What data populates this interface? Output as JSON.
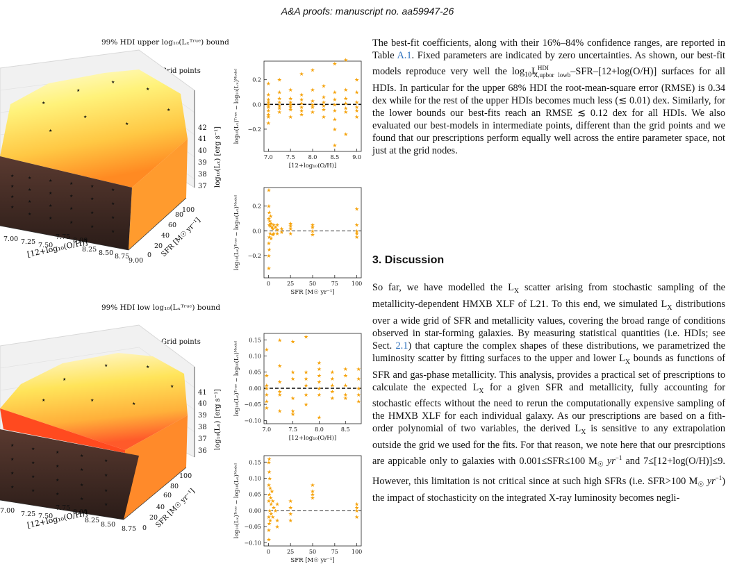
{
  "header": "A&A proofs: manuscript no. aa59947-26",
  "figures": {
    "top": {
      "title": "99% HDI upper log₁₀(Lₓᵀʳᵘᵉ) bound",
      "legend": "Grid points",
      "z_ticks": [
        "42",
        "41",
        "40",
        "39",
        "38",
        "37"
      ],
      "z_label": "log₁₀(Lₓ) [erg s⁻¹]",
      "x_ticks": [
        "7.00",
        "7.25",
        "7.50",
        "7.75",
        "8.00",
        "8.25",
        "8.50",
        "8.75",
        "9.00"
      ],
      "x_label": "[12+log₁₀(O/H)]",
      "y_ticks": [
        "0",
        "20",
        "40",
        "60",
        "80",
        "100"
      ],
      "y_label": "SFR [M☉ yr⁻¹]"
    },
    "bottom": {
      "title": "99% HDI low log₁₀(Lₓᵀʳᵘᵉ) bound",
      "legend": "Grid points",
      "z_ticks": [
        "41",
        "40",
        "39",
        "38",
        "37",
        "36"
      ],
      "z_label": "log₁₀(Lₓ) [erg s⁻¹]",
      "x_ticks": [
        "7.00",
        "7.25",
        "7.50",
        "7.75",
        "8.00",
        "8.25",
        "8.50",
        "8.75"
      ],
      "x_label": "[12+log₁₀(O/H)]",
      "y_ticks": [
        "0",
        "20",
        "40",
        "60",
        "80",
        "100"
      ],
      "y_label": "SFR [M☉ yr⁻¹]"
    }
  },
  "chart_data": [
    {
      "type": "scatter",
      "panel": "top-metallicity-residuals",
      "xlabel": "[12+log₁₀(O/H)]",
      "ylabel": "log₁₀(Lₓ)ᵀʳᵘᵉ − log₁₀(Lₓ)ᴹᵒᵈᵉˡ",
      "xlim": [
        6.9,
        9.1
      ],
      "ylim": [
        -0.38,
        0.35
      ],
      "x_ticks": [
        "7.0",
        "7.5",
        "8.0",
        "8.5",
        "9.0"
      ],
      "y_ticks": [
        "0.2",
        "0.0",
        "−0.2"
      ],
      "color": "#f5a20a",
      "points": [
        [
          7.0,
          0.17
        ],
        [
          7.0,
          0.08
        ],
        [
          7.0,
          0.04
        ],
        [
          7.0,
          0.02
        ],
        [
          7.0,
          0.0
        ],
        [
          7.0,
          -0.02
        ],
        [
          7.0,
          -0.05
        ],
        [
          7.0,
          -0.08
        ],
        [
          7.0,
          -0.1
        ],
        [
          7.0,
          -0.15
        ],
        [
          7.25,
          0.2
        ],
        [
          7.25,
          0.1
        ],
        [
          7.25,
          0.05
        ],
        [
          7.25,
          0.02
        ],
        [
          7.25,
          -0.01
        ],
        [
          7.25,
          -0.03
        ],
        [
          7.25,
          -0.06
        ],
        [
          7.5,
          0.12
        ],
        [
          7.5,
          0.05
        ],
        [
          7.5,
          0.02
        ],
        [
          7.5,
          0.0
        ],
        [
          7.5,
          -0.02
        ],
        [
          7.5,
          -0.04
        ],
        [
          7.5,
          -0.1
        ],
        [
          7.75,
          0.25
        ],
        [
          7.75,
          0.08
        ],
        [
          7.75,
          0.04
        ],
        [
          7.75,
          0.01
        ],
        [
          7.75,
          -0.02
        ],
        [
          7.75,
          -0.05
        ],
        [
          7.75,
          -0.08
        ],
        [
          8.0,
          0.28
        ],
        [
          8.0,
          0.12
        ],
        [
          8.0,
          0.03
        ],
        [
          8.0,
          0.0
        ],
        [
          8.0,
          -0.02
        ],
        [
          8.0,
          -0.06
        ],
        [
          8.25,
          0.15
        ],
        [
          8.25,
          0.06
        ],
        [
          8.25,
          0.02
        ],
        [
          8.25,
          -0.01
        ],
        [
          8.25,
          -0.04
        ],
        [
          8.25,
          -0.1
        ],
        [
          8.5,
          0.33
        ],
        [
          8.5,
          0.1
        ],
        [
          8.5,
          0.04
        ],
        [
          8.5,
          0.0
        ],
        [
          8.5,
          -0.05
        ],
        [
          8.5,
          -0.12
        ],
        [
          8.5,
          -0.33
        ],
        [
          8.5,
          -0.2
        ],
        [
          8.75,
          0.36
        ],
        [
          8.75,
          0.12
        ],
        [
          8.75,
          0.05
        ],
        [
          8.75,
          0.01
        ],
        [
          8.75,
          -0.03
        ],
        [
          8.75,
          -0.06
        ],
        [
          8.75,
          -0.24
        ],
        [
          9.0,
          0.2
        ],
        [
          9.0,
          0.1
        ],
        [
          9.0,
          0.02
        ],
        [
          9.0,
          -0.02
        ],
        [
          9.0,
          -0.05
        ],
        [
          9.0,
          -0.1
        ]
      ]
    },
    {
      "type": "scatter",
      "panel": "top-sfr-residuals",
      "xlabel": "SFR [M☉ yr⁻¹]",
      "ylabel": "log₁₀(Lₓ)ᵀʳᵘᵉ − log₁₀(Lₓ)ᴹᵒᵈᵉˡ",
      "xlim": [
        -5,
        105
      ],
      "ylim": [
        -0.38,
        0.35
      ],
      "x_ticks": [
        "0",
        "25",
        "50",
        "75",
        "100"
      ],
      "y_ticks": [
        "0.2",
        "0.0",
        "−0.2"
      ],
      "color": "#f5a20a",
      "points": [
        [
          0.5,
          0.33
        ],
        [
          0.5,
          0.2
        ],
        [
          0.5,
          0.1
        ],
        [
          0.5,
          -0.1
        ],
        [
          0.5,
          -0.2
        ],
        [
          0.5,
          -0.3
        ],
        [
          1,
          0.15
        ],
        [
          1,
          0.05
        ],
        [
          1,
          -0.05
        ],
        [
          1,
          -0.15
        ],
        [
          1.5,
          0.08
        ],
        [
          2,
          0.04
        ],
        [
          2,
          -0.02
        ],
        [
          2.5,
          0.12
        ],
        [
          3,
          0.06
        ],
        [
          3,
          -0.06
        ],
        [
          4,
          0.03
        ],
        [
          5,
          0.02
        ],
        [
          5,
          -0.03
        ],
        [
          6,
          0.05
        ],
        [
          6,
          -0.02
        ],
        [
          8,
          0.03
        ],
        [
          10,
          0.05
        ],
        [
          10,
          -0.02
        ],
        [
          10,
          0.01
        ],
        [
          15,
          0.02
        ],
        [
          15,
          -0.01
        ],
        [
          25,
          0.06
        ],
        [
          25,
          0.02
        ],
        [
          25,
          -0.02
        ],
        [
          25,
          0.04
        ],
        [
          50,
          0.05
        ],
        [
          50,
          0.0
        ],
        [
          50,
          -0.03
        ],
        [
          50,
          0.03
        ],
        [
          100,
          0.18
        ],
        [
          100,
          0.05
        ],
        [
          100,
          -0.02
        ],
        [
          100,
          -0.05
        ],
        [
          100,
          0.0
        ]
      ]
    },
    {
      "type": "scatter",
      "panel": "bottom-metallicity-residuals",
      "xlabel": "[12+log₁₀(O/H)]",
      "ylabel": "log₁₀(Lₓ)ᵀʳᵘᵉ − log₁₀(Lₓ)ᴹᵒᵈᵉˡ",
      "xlim": [
        6.95,
        8.8
      ],
      "ylim": [
        -0.11,
        0.17
      ],
      "x_ticks": [
        "7.0",
        "7.5",
        "8.0",
        "8.5"
      ],
      "y_ticks": [
        "0.15",
        "0.10",
        "0.05",
        "0.00",
        "−0.05",
        "−0.10"
      ],
      "color": "#f5a20a",
      "points": [
        [
          7.0,
          0.12
        ],
        [
          7.0,
          0.04
        ],
        [
          7.0,
          0.0
        ],
        [
          7.0,
          -0.02
        ],
        [
          7.0,
          -0.04
        ],
        [
          7.0,
          -0.06
        ],
        [
          7.0,
          0.01
        ],
        [
          7.25,
          0.15
        ],
        [
          7.25,
          0.07
        ],
        [
          7.25,
          0.02
        ],
        [
          7.25,
          -0.02
        ],
        [
          7.25,
          -0.07
        ],
        [
          7.25,
          -0.01
        ],
        [
          7.5,
          0.145
        ],
        [
          7.5,
          0.05
        ],
        [
          7.5,
          0.03
        ],
        [
          7.5,
          -0.03
        ],
        [
          7.5,
          -0.07
        ],
        [
          7.5,
          -0.08
        ],
        [
          7.75,
          0.16
        ],
        [
          7.75,
          0.05
        ],
        [
          7.75,
          0.01
        ],
        [
          7.75,
          -0.02
        ],
        [
          7.75,
          -0.05
        ],
        [
          7.75,
          0.03
        ],
        [
          8.0,
          0.08
        ],
        [
          8.0,
          0.06
        ],
        [
          8.0,
          0.04
        ],
        [
          8.0,
          0.02
        ],
        [
          8.0,
          0.0
        ],
        [
          8.0,
          -0.02
        ],
        [
          8.0,
          -0.09
        ],
        [
          8.25,
          0.05
        ],
        [
          8.25,
          0.03
        ],
        [
          8.25,
          0.01
        ],
        [
          8.25,
          -0.01
        ],
        [
          8.25,
          -0.03
        ],
        [
          8.5,
          0.06
        ],
        [
          8.5,
          0.04
        ],
        [
          8.5,
          0.01
        ],
        [
          8.5,
          -0.02
        ],
        [
          8.5,
          -0.03
        ],
        [
          8.75,
          0.06
        ],
        [
          8.75,
          0.03
        ],
        [
          8.75,
          0.0
        ],
        [
          8.75,
          -0.02
        ],
        [
          8.75,
          -0.04
        ]
      ]
    },
    {
      "type": "scatter",
      "panel": "bottom-sfr-residuals",
      "xlabel": "SFR [M☉ yr⁻¹]",
      "ylabel": "log₁₀(Lₓ)ᵀʳᵘᵉ − log₁₀(Lₓ)ᴹᵒᵈᵉˡ",
      "xlim": [
        -5,
        105
      ],
      "ylim": [
        -0.11,
        0.17
      ],
      "x_ticks": [
        "0",
        "25",
        "50",
        "75",
        "100"
      ],
      "y_ticks": [
        "0.15",
        "0.10",
        "0.05",
        "0.00",
        "−0.05",
        "−0.10"
      ],
      "color": "#f5a20a",
      "points": [
        [
          0.5,
          0.15
        ],
        [
          0.5,
          0.08
        ],
        [
          0.5,
          0.03
        ],
        [
          0.5,
          -0.02
        ],
        [
          0.5,
          -0.06
        ],
        [
          0.5,
          -0.09
        ],
        [
          1,
          0.16
        ],
        [
          1,
          0.12
        ],
        [
          1,
          0.05
        ],
        [
          1,
          -0.04
        ],
        [
          1.5,
          0.1
        ],
        [
          1.5,
          0.0
        ],
        [
          2,
          0.07
        ],
        [
          2,
          -0.03
        ],
        [
          2.5,
          0.04
        ],
        [
          3,
          0.02
        ],
        [
          3,
          -0.01
        ],
        [
          4,
          0.06
        ],
        [
          5,
          0.03
        ],
        [
          5,
          -0.02
        ],
        [
          6,
          0.01
        ],
        [
          8,
          0.0
        ],
        [
          10,
          0.02
        ],
        [
          10,
          -0.03
        ],
        [
          10,
          -0.05
        ],
        [
          25,
          0.03
        ],
        [
          25,
          0.01
        ],
        [
          25,
          -0.01
        ],
        [
          25,
          -0.03
        ],
        [
          50,
          0.08
        ],
        [
          50,
          0.06
        ],
        [
          50,
          0.04
        ],
        [
          50,
          0.05
        ],
        [
          100,
          0.02
        ],
        [
          100,
          0.01
        ],
        [
          100,
          0.0
        ],
        [
          100,
          -0.02
        ]
      ]
    }
  ],
  "text": {
    "p1": "The best-fit coefficients, along with their 16%–84% confidence ranges, are reported in Table A.1. Fixed parameters are indicated by zero uncertainties. As shown, our best-fit models reproduce very well the log₁₀L^HDI_X,upbor lowb–SFR–[12+log(O/H)] surfaces for all HDIs. In particular for the upper 68% HDI the root-mean-square error (RMSE) is 0.34 dex while for the rest of the upper HDIs becomes much less (≲ 0.01) dex. Similarly, for the lower bounds our best-fits reach an RMSE ≲ 0.12 dex for all HDIs. We also evaluated our best-models in intermediate points, different than the grid points and we found that our prescriptions perform equally well across the entire parameter space, not just at the grid nodes.",
    "section": "3. Discussion",
    "p2": "So far, we have modelled the Lₓ scatter arising from stochastic sampling of the metallicity-dependent HMXB XLF of L21. To this end, we simulated Lₓ distributions over a wide grid of SFR and metallicity values, covering the broad range of conditions observed in star-forming galaxies. By measuring statistical quantities (i.e. HDIs; see Sect. 2.1) that capture the complex shapes of these distributions, we parametrized the luminosity scatter by fitting surfaces to the upper and lower Lₓ bounds as functions of SFR and gas-phase metallicity. This analysis, provides a practical set of prescriptions to calculate the expected Lₓ for a given SFR and metallicity, fully accounting for stochastic effects without the need to rerun the computationally expensive sampling of the HMXB XLF for each individual galaxy. As our prescriptions are based on a fith-order polynomial of two variables, the derived Lₓ is sensitive to any extrapolation outside the grid we used for the fits. For that reason, we note here that our presrciptions are appicable only to galaxies with 0.001≤SFR≤100 M☉ yr⁻¹ and 7≤[12+log(O/H)]≤9. However, this limitation is not critical since at such high SFRs (i.e. SFR>100 M☉ yr⁻¹) the impact of stochasticity on the integrated X-ray luminosity becomes negli-"
  }
}
